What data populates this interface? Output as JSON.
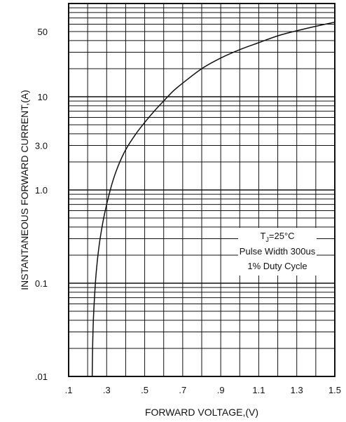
{
  "chart_data": {
    "type": "line",
    "title": "",
    "xlabel": "FORWARD VOLTAGE,(V)",
    "ylabel": "INSTANTANEOUS FORWARD CURRENT,(A)",
    "x_scale": "linear",
    "y_scale": "log",
    "xlim": [
      0.1,
      1.5
    ],
    "ylim": [
      0.01,
      100
    ],
    "x_ticks": [
      {
        "value": 0.1,
        "label": ".1"
      },
      {
        "value": 0.3,
        "label": ".3"
      },
      {
        "value": 0.5,
        "label": ".5"
      },
      {
        "value": 0.7,
        "label": ".7"
      },
      {
        "value": 0.9,
        "label": ".9"
      },
      {
        "value": 1.1,
        "label": "1.1"
      },
      {
        "value": 1.3,
        "label": "1.3"
      },
      {
        "value": 1.5,
        "label": "1.5"
      }
    ],
    "y_ticks": [
      {
        "value": 0.01,
        "label": ".01"
      },
      {
        "value": 0.1,
        "label": "0.1"
      },
      {
        "value": 1.0,
        "label": "1.0"
      },
      {
        "value": 3.0,
        "label": "3.0"
      },
      {
        "value": 10,
        "label": "10"
      },
      {
        "value": 50,
        "label": "50"
      }
    ],
    "grid": true,
    "series": [
      {
        "x": [
          0.224,
          0.226,
          0.23,
          0.236,
          0.245,
          0.26,
          0.28,
          0.3,
          0.33,
          0.36,
          0.4,
          0.45,
          0.5,
          0.55,
          0.6,
          0.65,
          0.7,
          0.8,
          0.9,
          1.0,
          1.1,
          1.2,
          1.3,
          1.4,
          1.5
        ],
        "y": [
          0.01,
          0.02,
          0.04,
          0.07,
          0.13,
          0.25,
          0.45,
          0.7,
          1.2,
          1.8,
          2.7,
          3.9,
          5.3,
          7.0,
          9.0,
          11.5,
          14,
          20,
          26,
          32,
          38,
          45,
          51,
          57,
          63
        ]
      }
    ],
    "annotations": [
      {
        "text": "T",
        "sub": "J",
        "rest": "=25°C"
      },
      {
        "text": "Pulse Width 300us"
      },
      {
        "text": "1% Duty Cycle"
      }
    ]
  }
}
